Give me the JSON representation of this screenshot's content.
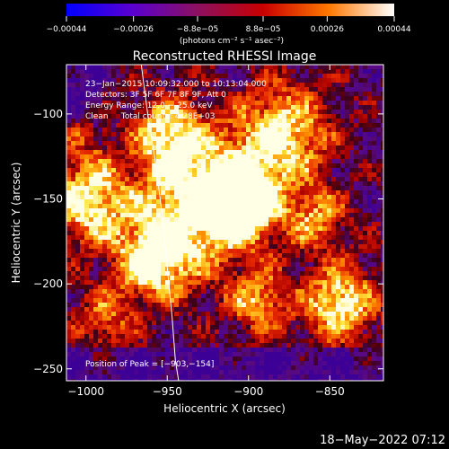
{
  "colorbar": {
    "ticks": [
      {
        "value": -0.00044,
        "label": "−0.00044"
      },
      {
        "value": -0.00026,
        "label": "−0.00026"
      },
      {
        "value": -8.8e-05,
        "label": "−8.8e−05"
      },
      {
        "value": 8.8e-05,
        "label": "8.8e−05"
      },
      {
        "value": 0.00026,
        "label": "0.00026"
      },
      {
        "value": 0.00044,
        "label": "0.00044"
      }
    ],
    "range": [
      -0.00044,
      0.00044
    ],
    "unit_label": "(photons cm⁻² s⁻¹ asec⁻²)",
    "colors": [
      "#0000ff",
      "#5a00d0",
      "#8c1060",
      "#c80000",
      "#ff7800",
      "#ffffff"
    ]
  },
  "plot": {
    "title": "Reconstructed RHESSI Image",
    "annotations": [
      "23−Jan−2015 10:09:32.000 to 10:13:04.000",
      "Detectors: 3F 5F 6F 7F 8F 9F, Att 0",
      "Energy Range: 12.0 − 25.0 keV",
      "Clean     Total counts: 4.28E+03"
    ],
    "peak_label": "Position of Peak = [−903,−154]",
    "footer_date": "18−May−2022 07:12"
  },
  "chart_data": {
    "type": "heatmap",
    "title": "Reconstructed RHESSI Image",
    "xlabel": "Heliocentric X (arcsec)",
    "ylabel": "Heliocentric Y (arcsec)",
    "xlim": [
      -1012,
      -817
    ],
    "ylim": [
      -257,
      -71
    ],
    "xticks": [
      {
        "value": -1000,
        "label": "−1000"
      },
      {
        "value": -950,
        "label": "−950"
      },
      {
        "value": -900,
        "label": "−900"
      },
      {
        "value": -850,
        "label": "−850"
      }
    ],
    "yticks": [
      {
        "value": -100,
        "label": "−100"
      },
      {
        "value": -150,
        "label": "−150"
      },
      {
        "value": -200,
        "label": "−200"
      },
      {
        "value": -250,
        "label": "−250"
      }
    ],
    "peak_position": [
      -903,
      -154
    ],
    "limb_curve": [
      [
        -966,
        -71
      ],
      [
        -962,
        -100
      ],
      [
        -957,
        -130
      ],
      [
        -953,
        -160
      ],
      [
        -950,
        -190
      ],
      [
        -947,
        -220
      ],
      [
        -945,
        -245
      ],
      [
        -943,
        -257
      ]
    ]
  }
}
